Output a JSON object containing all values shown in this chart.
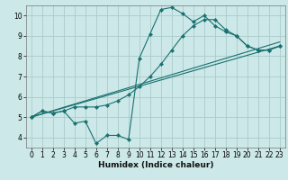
{
  "xlabel": "Humidex (Indice chaleur)",
  "xlim": [
    -0.5,
    23.5
  ],
  "ylim": [
    3.5,
    10.5
  ],
  "xticks": [
    0,
    1,
    2,
    3,
    4,
    5,
    6,
    7,
    8,
    9,
    10,
    11,
    12,
    13,
    14,
    15,
    16,
    17,
    18,
    19,
    20,
    21,
    22,
    23
  ],
  "yticks": [
    4,
    5,
    6,
    7,
    8,
    9,
    10
  ],
  "bg_color": "#cce8e8",
  "grid_color": "#aacccc",
  "line_color": "#1a7070",
  "line1_x": [
    0,
    1,
    2,
    3,
    4,
    5,
    6,
    7,
    8,
    9,
    10,
    11,
    12,
    13,
    14,
    15,
    16,
    17,
    18,
    19,
    20,
    21,
    22,
    23
  ],
  "line1_y": [
    5.0,
    5.3,
    5.2,
    5.3,
    4.7,
    4.8,
    3.7,
    4.1,
    4.1,
    3.9,
    7.9,
    9.1,
    10.3,
    10.4,
    10.1,
    9.7,
    10.0,
    9.5,
    9.2,
    9.0,
    8.5,
    8.3,
    8.3,
    8.5
  ],
  "line2_x": [
    0,
    1,
    2,
    3,
    4,
    5,
    6,
    7,
    8,
    9,
    10,
    11,
    12,
    13,
    14,
    15,
    16,
    17,
    18,
    19,
    20,
    21,
    22,
    23
  ],
  "line2_y": [
    5.0,
    5.3,
    5.2,
    5.3,
    5.5,
    5.5,
    5.5,
    5.6,
    5.8,
    6.1,
    6.5,
    7.0,
    7.6,
    8.3,
    9.0,
    9.5,
    9.8,
    9.8,
    9.3,
    9.0,
    8.5,
    8.3,
    8.3,
    8.5
  ],
  "line3_x": [
    0,
    23
  ],
  "line3_y": [
    5.0,
    8.7
  ],
  "line4_x": [
    0,
    23
  ],
  "line4_y": [
    5.0,
    8.5
  ],
  "marker": "D",
  "markersize": 2.2,
  "linewidth": 0.8,
  "xlabel_fontsize": 6.5,
  "tick_fontsize": 5.5
}
